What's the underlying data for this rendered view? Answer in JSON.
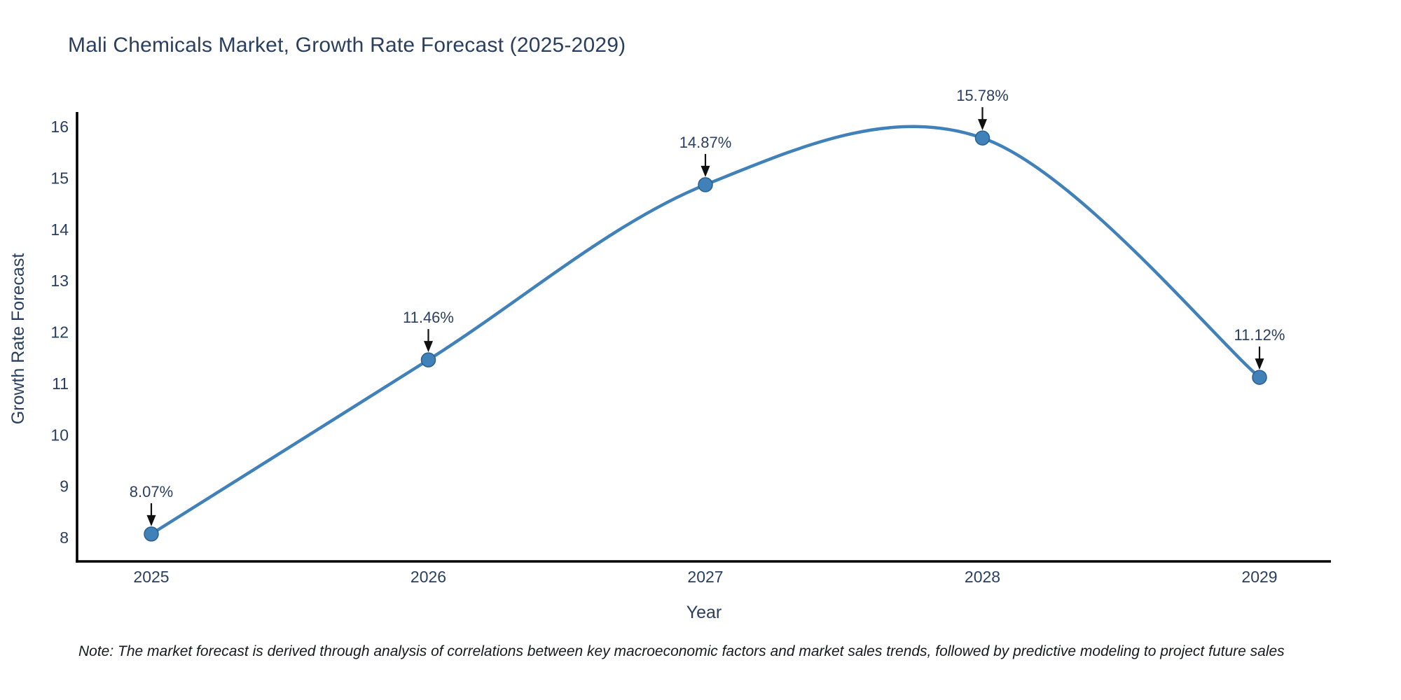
{
  "chart_data": {
    "type": "line",
    "title": "Mali Chemicals Market, Growth Rate Forecast (2025-2029)",
    "xlabel": "Year",
    "ylabel": "Growth Rate Forecast",
    "x": [
      2025,
      2026,
      2027,
      2028,
      2029
    ],
    "series": [
      {
        "name": "Growth Rate Forecast",
        "values": [
          8.07,
          11.46,
          14.87,
          15.78,
          11.12
        ]
      }
    ],
    "point_labels": [
      "8.07%",
      "11.46%",
      "14.87%",
      "15.78%",
      "11.12%"
    ],
    "xticks": [
      "2025",
      "2026",
      "2027",
      "2028",
      "2029"
    ],
    "yticks": [
      8,
      9,
      10,
      11,
      12,
      13,
      14,
      15,
      16
    ],
    "ylim": [
      7.55,
      16.3
    ],
    "xlim": [
      2024.73,
      2029.26
    ],
    "line_shape": "spline",
    "grid": false,
    "legend_position": "none",
    "colors": {
      "line": "#4181ba",
      "marker_fill": "#4181ba",
      "marker_edge": "#2b5f8e",
      "axis_line": "#000000",
      "text": "#2a3f5f",
      "annotation_text": "#2a3f5f",
      "annotation_arrow": "#101010",
      "note_text": "#15191f",
      "background": "#ffffff"
    }
  },
  "note": {
    "text": "Note: The market forecast is derived through analysis of correlations between key macroeconomic factors and market sales trends, followed by predictive modeling to project future sales"
  }
}
